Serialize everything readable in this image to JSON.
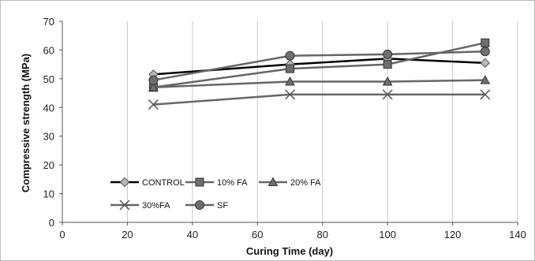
{
  "chart_data": {
    "type": "line",
    "xlabel": "Curing Time (day)",
    "ylabel": "Compressive strength (MPa)",
    "xlim": [
      0,
      140
    ],
    "ylim": [
      0,
      70
    ],
    "xticks": [
      0,
      20,
      40,
      60,
      80,
      100,
      120,
      140
    ],
    "yticks": [
      0,
      10,
      20,
      30,
      40,
      50,
      60,
      70
    ],
    "grid": "vertical",
    "legend": "bottom-left inside plot",
    "series": [
      {
        "name": "CONTROL",
        "x": [
          28,
          70,
          100,
          130
        ],
        "y": [
          51.5,
          55,
          57,
          55.5
        ],
        "color": "#000000",
        "marker": "diamond"
      },
      {
        "name": "10% FA",
        "x": [
          28,
          70,
          100,
          130
        ],
        "y": [
          47,
          53.5,
          55,
          62.5
        ],
        "color": "#666666",
        "marker": "square"
      },
      {
        "name": "20% FA",
        "x": [
          28,
          70,
          100,
          130
        ],
        "y": [
          47,
          49,
          49,
          49.5
        ],
        "color": "#666666",
        "marker": "triangle"
      },
      {
        "name": "30%FA",
        "x": [
          28,
          70,
          100,
          130
        ],
        "y": [
          41,
          44.5,
          44.5,
          44.5
        ],
        "color": "#666666",
        "marker": "x"
      },
      {
        "name": "SF",
        "x": [
          28,
          70,
          100,
          130
        ],
        "y": [
          49.5,
          58,
          58.5,
          59.5
        ],
        "color": "#666666",
        "marker": "circle"
      }
    ]
  }
}
